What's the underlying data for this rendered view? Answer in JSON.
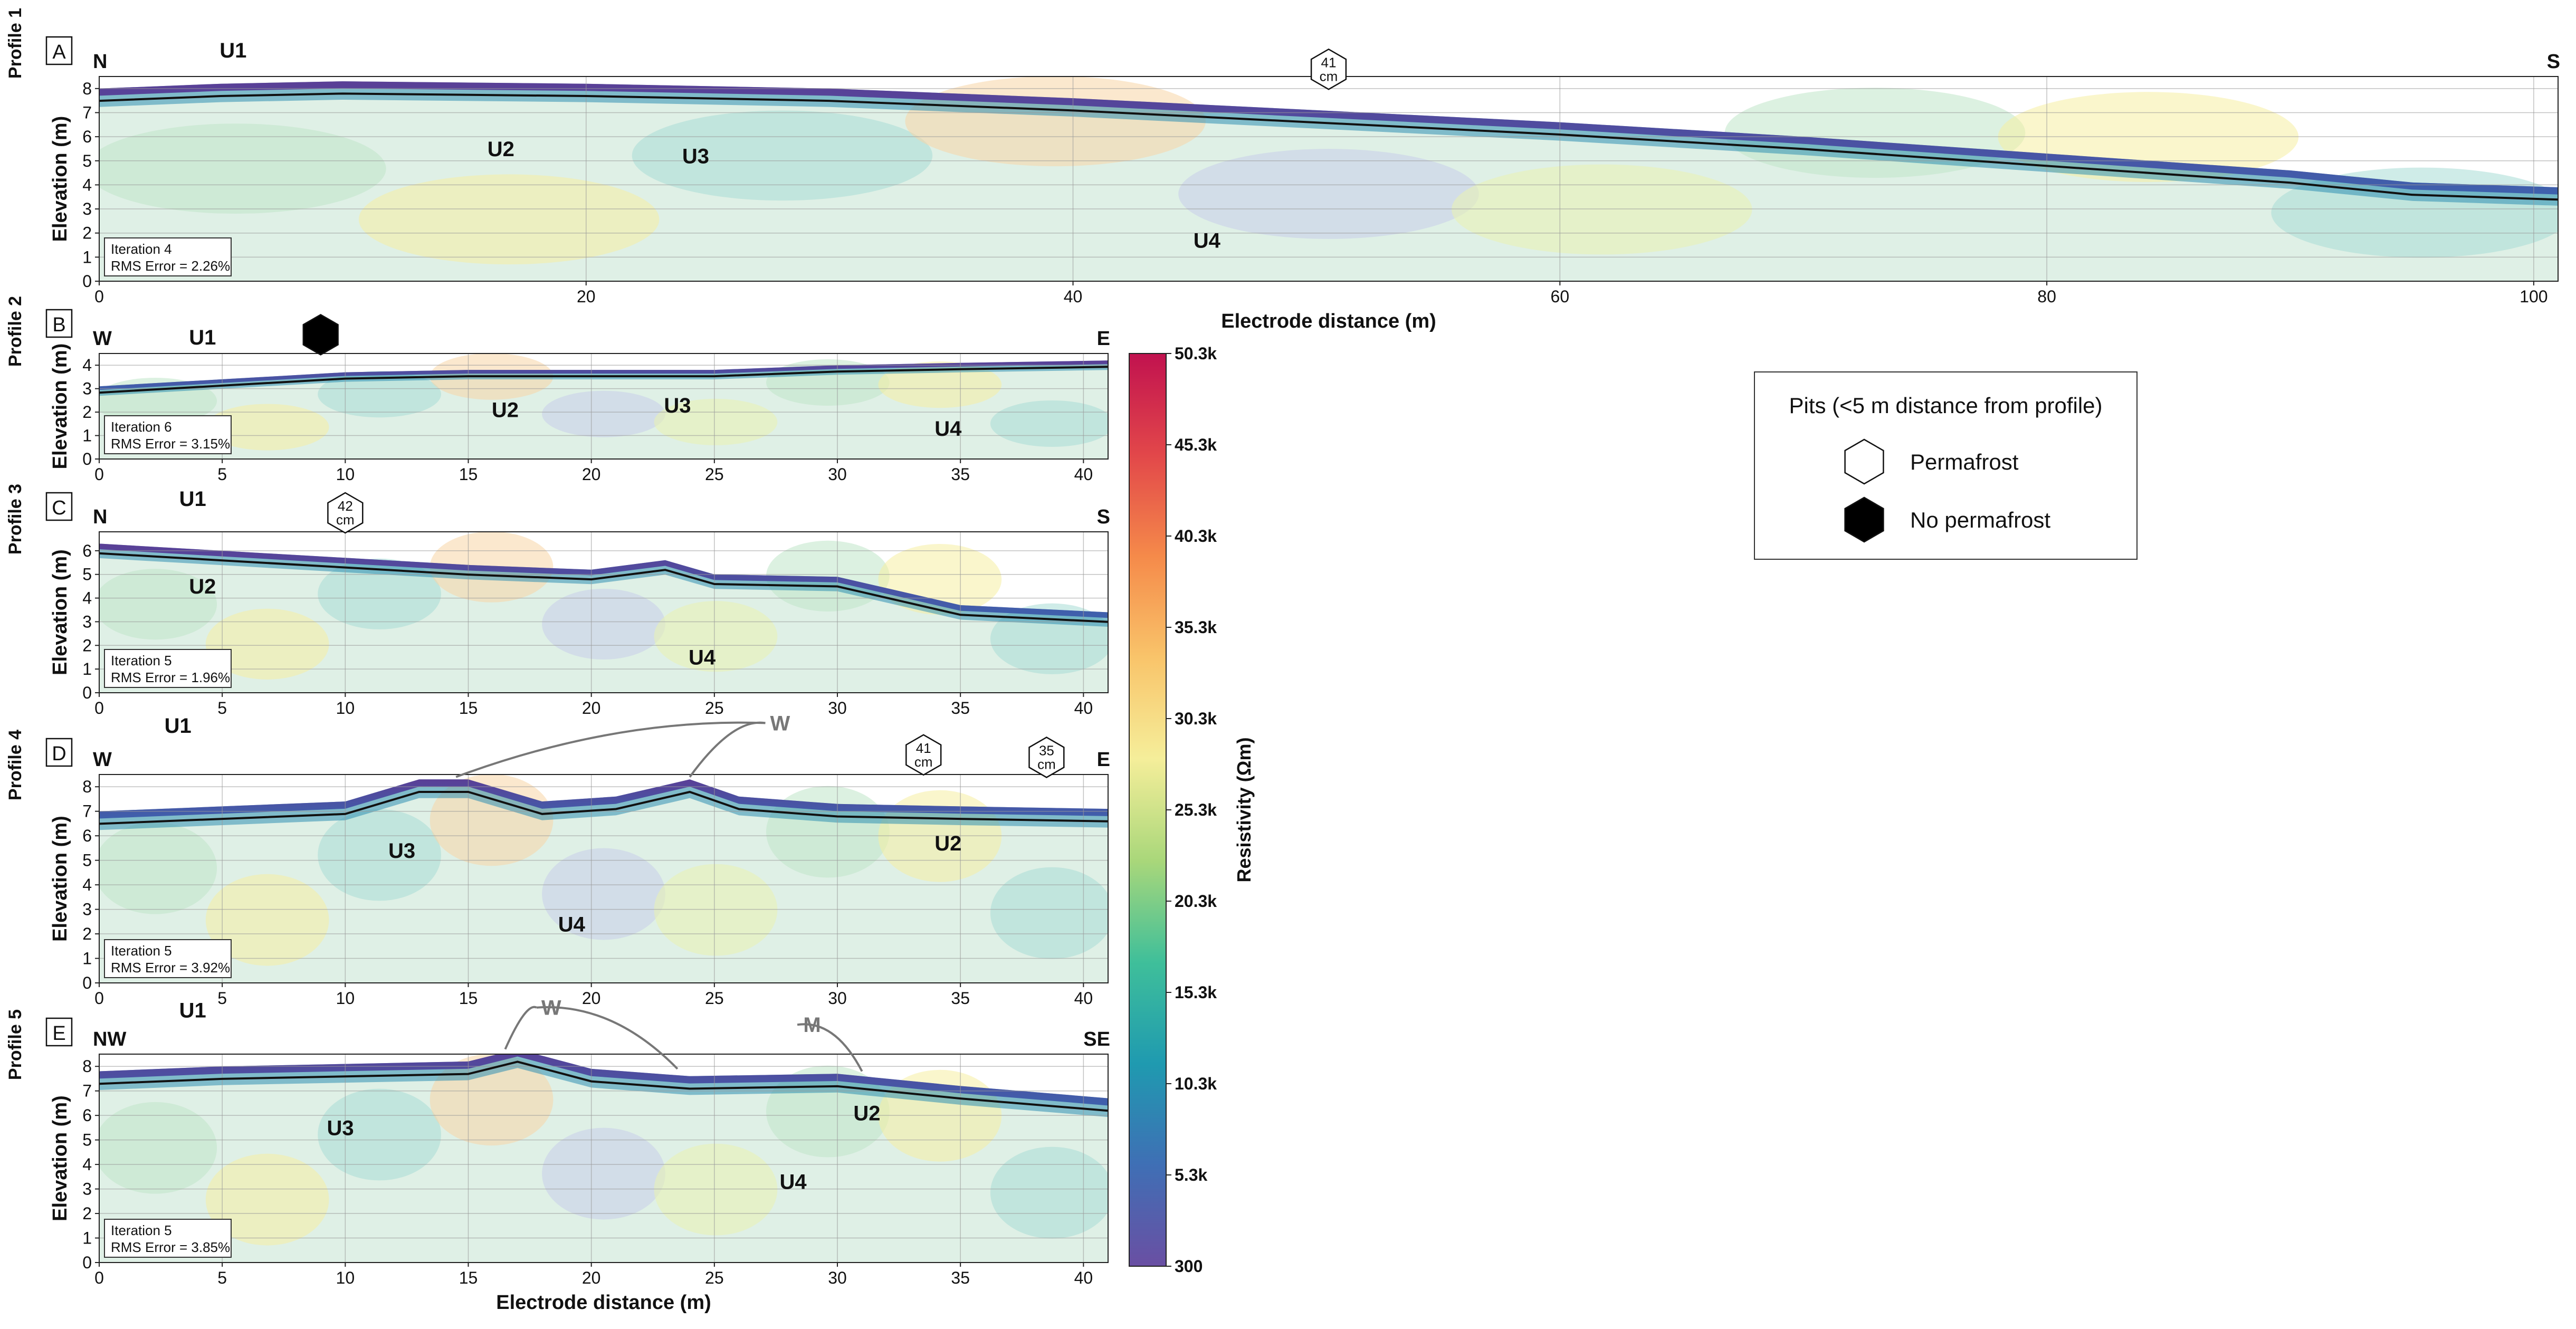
{
  "chart_data": {
    "type": "heatmap",
    "colorbar": {
      "title": "Resistivity (Ωm)",
      "tick_labels": [
        "50.3k",
        "45.3k",
        "40.3k",
        "35.3k",
        "30.3k",
        "25.3k",
        "20.3k",
        "15.3k",
        "10.3k",
        "5.3k",
        "300"
      ],
      "range": [
        300,
        50300
      ],
      "colors": [
        "#6a4fa3",
        "#3f6fb5",
        "#1f9ab0",
        "#3fbf9a",
        "#a9d77a",
        "#f5ee9a",
        "#f9c46a",
        "#f58a4a",
        "#e2474a",
        "#c1124f"
      ]
    },
    "panels": [
      {
        "letter": "A",
        "profile": "Profile 1",
        "dir_left": "N",
        "dir_right": "S",
        "xlim": [
          0,
          101
        ],
        "ylim": [
          0,
          8.5
        ],
        "xticks": [
          "0",
          "20",
          "40",
          "60",
          "80",
          "100"
        ],
        "yticks": [
          "0",
          "1",
          "2",
          "3",
          "4",
          "5",
          "6",
          "7",
          "8"
        ],
        "xlabel": "Electrode distance (m)",
        "ylabel": "Elevation (m)",
        "iteration": "Iteration 4",
        "rms": "RMS Error = 2.26%",
        "surface": [
          [
            0,
            8.0
          ],
          [
            5,
            8.2
          ],
          [
            10,
            8.3
          ],
          [
            20,
            8.2
          ],
          [
            30,
            8.0
          ],
          [
            40,
            7.6
          ],
          [
            50,
            7.1
          ],
          [
            60,
            6.6
          ],
          [
            70,
            6.0
          ],
          [
            80,
            5.3
          ],
          [
            90,
            4.6
          ],
          [
            95,
            4.1
          ],
          [
            101,
            3.9
          ]
        ],
        "units": [
          {
            "label": "U1",
            "x": 5.5,
            "y": 9.6
          },
          {
            "label": "U2",
            "x": 16.5,
            "y": 5.5
          },
          {
            "label": "U3",
            "x": 24.5,
            "y": 5.2
          },
          {
            "label": "U4",
            "x": 45.5,
            "y": 1.7
          }
        ],
        "pits": [
          {
            "x": 50.5,
            "y": 8.8,
            "text": "41 cm",
            "filled": false
          }
        ],
        "markers": []
      },
      {
        "letter": "B",
        "profile": "Profile 2",
        "dir_left": "W",
        "dir_right": "E",
        "xlim": [
          0,
          41
        ],
        "ylim": [
          0,
          4.5
        ],
        "xticks": [
          "0",
          "5",
          "10",
          "15",
          "20",
          "25",
          "30",
          "35",
          "40"
        ],
        "yticks": [
          "0",
          "1",
          "2",
          "3",
          "4"
        ],
        "xlabel": "",
        "ylabel": "Elevation (m)",
        "iteration": "Iteration 6",
        "rms": "RMS Error = 3.15%",
        "surface": [
          [
            0,
            3.1
          ],
          [
            5,
            3.4
          ],
          [
            10,
            3.7
          ],
          [
            15,
            3.8
          ],
          [
            20,
            3.8
          ],
          [
            25,
            3.8
          ],
          [
            30,
            4.0
          ],
          [
            35,
            4.1
          ],
          [
            41,
            4.2
          ]
        ],
        "units": [
          {
            "label": "U1",
            "x": 4.2,
            "y": 5.2
          },
          {
            "label": "U2",
            "x": 16.5,
            "y": 2.1
          },
          {
            "label": "U3",
            "x": 23.5,
            "y": 2.3
          },
          {
            "label": "U4",
            "x": 34.5,
            "y": 1.3
          }
        ],
        "pits": [
          {
            "x": 9,
            "y": 5.3,
            "text": "",
            "filled": true
          }
        ],
        "markers": []
      },
      {
        "letter": "C",
        "profile": "Profile 3",
        "dir_left": "N",
        "dir_right": "S",
        "xlim": [
          0,
          41
        ],
        "ylim": [
          0,
          6.8
        ],
        "xticks": [
          "0",
          "5",
          "10",
          "15",
          "20",
          "25",
          "30",
          "35",
          "40"
        ],
        "yticks": [
          "0",
          "1",
          "2",
          "3",
          "4",
          "5",
          "6"
        ],
        "xlabel": "",
        "ylabel": "Elevation (m)",
        "iteration": "Iteration 5",
        "rms": "RMS Error = 1.96%",
        "surface": [
          [
            0,
            6.3
          ],
          [
            5,
            6.0
          ],
          [
            10,
            5.7
          ],
          [
            15,
            5.4
          ],
          [
            20,
            5.2
          ],
          [
            23,
            5.6
          ],
          [
            25,
            5.0
          ],
          [
            30,
            4.9
          ],
          [
            35,
            3.7
          ],
          [
            41,
            3.4
          ]
        ],
        "units": [
          {
            "label": "U1",
            "x": 3.8,
            "y": 8.2
          },
          {
            "label": "U2",
            "x": 4.2,
            "y": 4.5
          },
          {
            "label": "U4",
            "x": 24.5,
            "y": 1.5
          }
        ],
        "pits": [
          {
            "x": 10,
            "y": 7.6,
            "text": "42 cm",
            "filled": false
          }
        ],
        "markers": []
      },
      {
        "letter": "D",
        "profile": "Profile 4",
        "dir_left": "W",
        "dir_right": "E",
        "xlim": [
          0,
          41
        ],
        "ylim": [
          0,
          8.5
        ],
        "xticks": [
          "0",
          "5",
          "10",
          "15",
          "20",
          "25",
          "30",
          "35",
          "40"
        ],
        "yticks": [
          "0",
          "1",
          "2",
          "3",
          "4",
          "5",
          "6",
          "7",
          "8"
        ],
        "xlabel": "",
        "ylabel": "Elevation (m)",
        "iteration": "Iteration 5",
        "rms": "RMS Error = 3.92%",
        "surface": [
          [
            0,
            7.0
          ],
          [
            5,
            7.2
          ],
          [
            10,
            7.4
          ],
          [
            13,
            8.3
          ],
          [
            15,
            8.3
          ],
          [
            18,
            7.4
          ],
          [
            21,
            7.6
          ],
          [
            24,
            8.3
          ],
          [
            26,
            7.6
          ],
          [
            30,
            7.3
          ],
          [
            35,
            7.2
          ],
          [
            41,
            7.1
          ]
        ],
        "units": [
          {
            "label": "U1",
            "x": 3.2,
            "y": 10.5
          },
          {
            "label": "U2",
            "x": 34.5,
            "y": 5.7
          },
          {
            "label": "U3",
            "x": 12.3,
            "y": 5.4
          },
          {
            "label": "U4",
            "x": 19.2,
            "y": 2.4
          }
        ],
        "pits": [
          {
            "x": 33.5,
            "y": 9.3,
            "text": "41 cm",
            "filled": false
          },
          {
            "x": 38.5,
            "y": 9.2,
            "text": "35 cm",
            "filled": false
          }
        ],
        "markers": [
          {
            "label": "W",
            "x": 27.5,
            "y": 10.6,
            "points": [
              [
                14.5,
                8.4
              ],
              [
                24,
                8.4
              ]
            ]
          }
        ]
      },
      {
        "letter": "E",
        "profile": "Profile 5",
        "dir_left": "NW",
        "dir_right": "SE",
        "xlim": [
          0,
          41
        ],
        "ylim": [
          0,
          8.5
        ],
        "xticks": [
          "0",
          "5",
          "10",
          "15",
          "20",
          "25",
          "30",
          "35",
          "40"
        ],
        "yticks": [
          "0",
          "1",
          "2",
          "3",
          "4",
          "5",
          "6",
          "7",
          "8"
        ],
        "xlabel": "Electrode distance (m)",
        "ylabel": "Elevation (m)",
        "iteration": "Iteration 5",
        "rms": "RMS Error = 3.85%",
        "surface": [
          [
            0,
            7.8
          ],
          [
            5,
            8.0
          ],
          [
            10,
            8.1
          ],
          [
            15,
            8.2
          ],
          [
            17,
            8.7
          ],
          [
            20,
            7.9
          ],
          [
            24,
            7.6
          ],
          [
            30,
            7.7
          ],
          [
            35,
            7.2
          ],
          [
            41,
            6.7
          ]
        ],
        "units": [
          {
            "label": "U1",
            "x": 3.8,
            "y": 10.3
          },
          {
            "label": "U2",
            "x": 31.2,
            "y": 6.1
          },
          {
            "label": "U3",
            "x": 9.8,
            "y": 5.5
          },
          {
            "label": "U4",
            "x": 28.2,
            "y": 3.3
          }
        ],
        "pits": [],
        "markers": [
          {
            "label": "W",
            "x": 18.2,
            "y": 10.4,
            "points": [
              [
                16.5,
                8.7
              ],
              [
                23.5,
                7.9
              ]
            ]
          },
          {
            "label": "M",
            "x": 28.8,
            "y": 9.7,
            "points": [
              [
                31,
                7.8
              ]
            ]
          }
        ]
      }
    ],
    "legend": {
      "title": "Pits (<5 m distance from profile)",
      "items": [
        {
          "label": "Permafrost",
          "filled": false
        },
        {
          "label": "No permafrost",
          "filled": true
        }
      ]
    }
  }
}
